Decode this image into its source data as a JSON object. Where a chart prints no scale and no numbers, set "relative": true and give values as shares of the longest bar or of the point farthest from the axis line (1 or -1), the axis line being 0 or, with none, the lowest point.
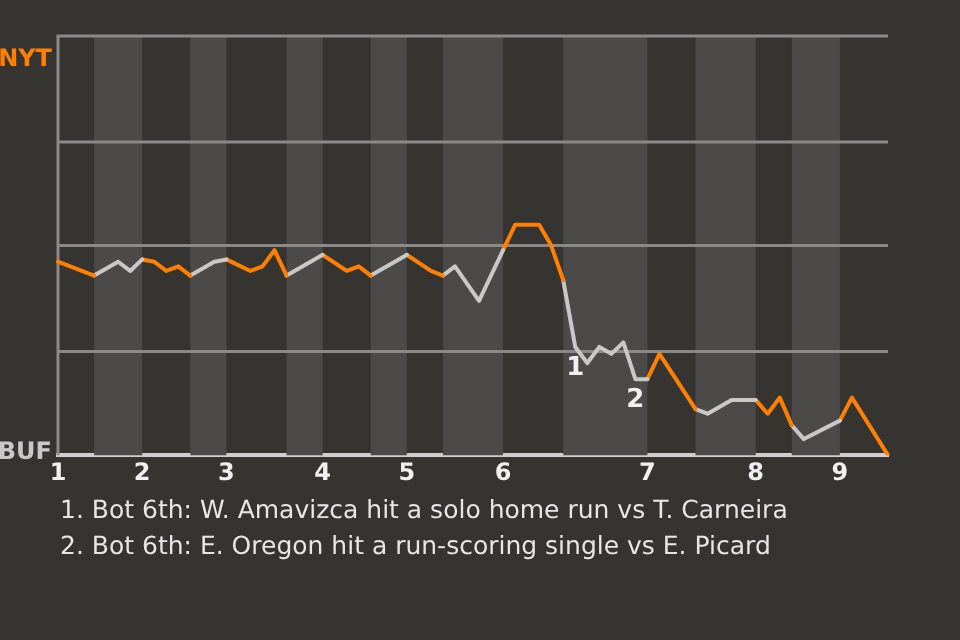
{
  "chart_data": {
    "type": "line",
    "relative": true,
    "categories": [
      "1",
      null,
      null,
      null,
      null,
      null,
      null,
      "2",
      null,
      null,
      null,
      null,
      null,
      null,
      "3",
      null,
      null,
      null,
      null,
      null,
      null,
      null,
      "4",
      null,
      null,
      null,
      null,
      null,
      null,
      "5",
      null,
      null,
      null,
      null,
      null,
      null,
      null,
      "6",
      null,
      null,
      null,
      null,
      null,
      null,
      null,
      null,
      null,
      null,
      null,
      "7",
      null,
      null,
      null,
      null,
      null,
      null,
      null,
      null,
      "8",
      null,
      null,
      null,
      null,
      null,
      null,
      "9",
      null,
      null,
      null,
      null
    ],
    "ref_lines": [
      {
        "axis": "y",
        "value": 0.45
      },
      {
        "axis": "y",
        "value": 0.91
      },
      {
        "axis": "y",
        "value": 1.36
      }
    ],
    "marker": "none",
    "line_style": "solid",
    "series": [
      {
        "color": "#ff7f00",
        "values": [
          0.84,
          null,
          null,
          0.78,
          null,
          null,
          null,
          null,
          null,
          null,
          null,
          null,
          null,
          null,
          null,
          null,
          null,
          null,
          null,
          null,
          null,
          null,
          null,
          null,
          null,
          null,
          null,
          null,
          null,
          null,
          null,
          null,
          null,
          null,
          null,
          null,
          null,
          null,
          null,
          null,
          null,
          null,
          null,
          null,
          null,
          null,
          null,
          null,
          null,
          null,
          null,
          null,
          null,
          null,
          null,
          null,
          null,
          null,
          null,
          null,
          null,
          null,
          null,
          null,
          null,
          null,
          null,
          null,
          null,
          null
        ]
      },
      {
        "color": "#c8c8c8",
        "values": [
          null,
          null,
          null,
          0.78,
          null,
          0.84,
          0.8,
          0.85,
          null,
          null,
          null,
          null,
          null,
          null,
          null,
          null,
          null,
          null,
          null,
          null,
          null,
          null,
          null,
          null,
          null,
          null,
          null,
          null,
          null,
          null,
          null,
          null,
          null,
          null,
          null,
          null,
          null,
          null,
          null,
          null,
          null,
          null,
          null,
          null,
          null,
          null,
          null,
          null,
          null,
          null,
          null,
          null,
          null,
          null,
          null,
          null,
          null,
          null,
          null,
          null,
          null,
          null,
          null,
          null,
          null,
          null,
          null,
          null,
          null,
          null
        ]
      },
      {
        "color": "#ff7f00",
        "values": [
          null,
          null,
          null,
          null,
          null,
          null,
          null,
          0.85,
          0.84,
          0.8,
          0.82,
          0.78,
          null,
          null,
          null,
          null,
          null,
          null,
          null,
          null,
          null,
          null,
          null,
          null,
          null,
          null,
          null,
          null,
          null,
          null,
          null,
          null,
          null,
          null,
          null,
          null,
          null,
          null,
          null,
          null,
          null,
          null,
          null,
          null,
          null,
          null,
          null,
          null,
          null,
          null,
          null,
          null,
          null,
          null,
          null,
          null,
          null,
          null,
          null,
          null,
          null,
          null,
          null,
          null,
          null,
          null,
          null,
          null,
          null,
          null
        ]
      },
      {
        "color": "#c8c8c8",
        "values": [
          null,
          null,
          null,
          null,
          null,
          null,
          null,
          null,
          null,
          null,
          null,
          0.78,
          null,
          0.84,
          0.85,
          null,
          null,
          null,
          null,
          null,
          null,
          null,
          null,
          null,
          null,
          null,
          null,
          null,
          null,
          null,
          null,
          null,
          null,
          null,
          null,
          null,
          null,
          null,
          null,
          null,
          null,
          null,
          null,
          null,
          null,
          null,
          null,
          null,
          null,
          null,
          null,
          null,
          null,
          null,
          null,
          null,
          null,
          null,
          null,
          null,
          null,
          null,
          null,
          null,
          null,
          null,
          null,
          null,
          null,
          null
        ]
      },
      {
        "color": "#ff7f00",
        "values": [
          null,
          null,
          null,
          null,
          null,
          null,
          null,
          null,
          null,
          null,
          null,
          null,
          null,
          null,
          0.85,
          null,
          0.8,
          0.82,
          0.89,
          0.78,
          null,
          null,
          null,
          null,
          null,
          null,
          null,
          null,
          null,
          null,
          null,
          null,
          null,
          null,
          null,
          null,
          null,
          null,
          null,
          null,
          null,
          null,
          null,
          null,
          null,
          null,
          null,
          null,
          null,
          null,
          null,
          null,
          null,
          null,
          null,
          null,
          null,
          null,
          null,
          null,
          null,
          null,
          null,
          null,
          null,
          null,
          null,
          null,
          null,
          null
        ]
      },
      {
        "color": "#c8c8c8",
        "values": [
          null,
          null,
          null,
          null,
          null,
          null,
          null,
          null,
          null,
          null,
          null,
          null,
          null,
          null,
          null,
          null,
          null,
          null,
          null,
          0.78,
          null,
          0.84,
          0.87,
          null,
          null,
          null,
          null,
          null,
          null,
          null,
          null,
          null,
          null,
          null,
          null,
          null,
          null,
          null,
          null,
          null,
          null,
          null,
          null,
          null,
          null,
          null,
          null,
          null,
          null,
          null,
          null,
          null,
          null,
          null,
          null,
          null,
          null,
          null,
          null,
          null,
          null,
          null,
          null,
          null,
          null,
          null,
          null,
          null,
          null,
          null
        ]
      },
      {
        "color": "#ff7f00",
        "values": [
          null,
          null,
          null,
          null,
          null,
          null,
          null,
          null,
          null,
          null,
          null,
          null,
          null,
          null,
          null,
          null,
          null,
          null,
          null,
          null,
          null,
          null,
          0.87,
          null,
          0.8,
          0.82,
          0.78,
          null,
          null,
          null,
          null,
          null,
          null,
          null,
          null,
          null,
          null,
          null,
          null,
          null,
          null,
          null,
          null,
          null,
          null,
          null,
          null,
          null,
          null,
          null,
          null,
          null,
          null,
          null,
          null,
          null,
          null,
          null,
          null,
          null,
          null,
          null,
          null,
          null,
          null,
          null,
          null,
          null,
          null,
          null
        ]
      },
      {
        "color": "#c8c8c8",
        "values": [
          null,
          null,
          null,
          null,
          null,
          null,
          null,
          null,
          null,
          null,
          null,
          null,
          null,
          null,
          null,
          null,
          null,
          null,
          null,
          null,
          null,
          null,
          null,
          null,
          null,
          null,
          0.78,
          null,
          0.84,
          0.87,
          null,
          null,
          null,
          null,
          null,
          null,
          null,
          null,
          null,
          null,
          null,
          null,
          null,
          null,
          null,
          null,
          null,
          null,
          null,
          null,
          null,
          null,
          null,
          null,
          null,
          null,
          null,
          null,
          null,
          null,
          null,
          null,
          null,
          null,
          null,
          null,
          null,
          null,
          null,
          null
        ]
      },
      {
        "color": "#ff7f00",
        "values": [
          null,
          null,
          null,
          null,
          null,
          null,
          null,
          null,
          null,
          null,
          null,
          null,
          null,
          null,
          null,
          null,
          null,
          null,
          null,
          null,
          null,
          null,
          null,
          null,
          null,
          null,
          null,
          null,
          null,
          0.87,
          null,
          0.8,
          0.78,
          null,
          null,
          null,
          null,
          null,
          null,
          null,
          null,
          null,
          null,
          null,
          null,
          null,
          null,
          null,
          null,
          null,
          null,
          null,
          null,
          null,
          null,
          null,
          null,
          null,
          null,
          null,
          null,
          null,
          null,
          null,
          null,
          null,
          null,
          null,
          null,
          null
        ]
      },
      {
        "color": "#c8c8c8",
        "values": [
          null,
          null,
          null,
          null,
          null,
          null,
          null,
          null,
          null,
          null,
          null,
          null,
          null,
          null,
          null,
          null,
          null,
          null,
          null,
          null,
          null,
          null,
          null,
          null,
          null,
          null,
          null,
          null,
          null,
          null,
          null,
          null,
          0.78,
          0.82,
          null,
          0.67,
          null,
          0.89,
          null,
          null,
          null,
          null,
          null,
          null,
          null,
          null,
          null,
          null,
          null,
          null,
          null,
          null,
          null,
          null,
          null,
          null,
          null,
          null,
          null,
          null,
          null,
          null,
          null,
          null,
          null,
          null,
          null,
          null,
          null,
          null
        ]
      },
      {
        "color": "#ff7f00",
        "values": [
          null,
          null,
          null,
          null,
          null,
          null,
          null,
          null,
          null,
          null,
          null,
          null,
          null,
          null,
          null,
          null,
          null,
          null,
          null,
          null,
          null,
          null,
          null,
          null,
          null,
          null,
          null,
          null,
          null,
          null,
          null,
          null,
          null,
          null,
          null,
          null,
          null,
          0.89,
          1,
          null,
          1,
          0.91,
          0.76,
          null,
          null,
          null,
          null,
          null,
          null,
          null,
          null,
          null,
          null,
          null,
          null,
          null,
          null,
          null,
          null,
          null,
          null,
          null,
          null,
          null,
          null,
          null,
          null,
          null,
          null,
          null
        ]
      },
      {
        "color": "#c8c8c8",
        "values": [
          null,
          null,
          null,
          null,
          null,
          null,
          null,
          null,
          null,
          null,
          null,
          null,
          null,
          null,
          null,
          null,
          null,
          null,
          null,
          null,
          null,
          null,
          null,
          null,
          null,
          null,
          null,
          null,
          null,
          null,
          null,
          null,
          null,
          null,
          null,
          null,
          null,
          null,
          null,
          null,
          null,
          null,
          0.76,
          0.47,
          0.4,
          0.47,
          0.44,
          0.49,
          0.33,
          0.33,
          null,
          null,
          null,
          null,
          null,
          null,
          null,
          null,
          null,
          null,
          null,
          null,
          null,
          null,
          null,
          null,
          null,
          null,
          null,
          null
        ]
      },
      {
        "color": "#ff7f00",
        "values": [
          null,
          null,
          null,
          null,
          null,
          null,
          null,
          null,
          null,
          null,
          null,
          null,
          null,
          null,
          null,
          null,
          null,
          null,
          null,
          null,
          null,
          null,
          null,
          null,
          null,
          null,
          null,
          null,
          null,
          null,
          null,
          null,
          null,
          null,
          null,
          null,
          null,
          null,
          null,
          null,
          null,
          null,
          null,
          null,
          null,
          null,
          null,
          null,
          null,
          0.33,
          0.44,
          null,
          null,
          0.2,
          null,
          null,
          null,
          null,
          null,
          null,
          null,
          null,
          null,
          null,
          null,
          null,
          null,
          null,
          null,
          null
        ]
      },
      {
        "color": "#c8c8c8",
        "values": [
          null,
          null,
          null,
          null,
          null,
          null,
          null,
          null,
          null,
          null,
          null,
          null,
          null,
          null,
          null,
          null,
          null,
          null,
          null,
          null,
          null,
          null,
          null,
          null,
          null,
          null,
          null,
          null,
          null,
          null,
          null,
          null,
          null,
          null,
          null,
          null,
          null,
          null,
          null,
          null,
          null,
          null,
          null,
          null,
          null,
          null,
          null,
          null,
          null,
          null,
          null,
          null,
          null,
          0.2,
          0.18,
          null,
          0.24,
          null,
          0.24,
          null,
          null,
          null,
          null,
          null,
          null,
          null,
          null,
          null,
          null,
          null
        ]
      },
      {
        "color": "#ff7f00",
        "values": [
          null,
          null,
          null,
          null,
          null,
          null,
          null,
          null,
          null,
          null,
          null,
          null,
          null,
          null,
          null,
          null,
          null,
          null,
          null,
          null,
          null,
          null,
          null,
          null,
          null,
          null,
          null,
          null,
          null,
          null,
          null,
          null,
          null,
          null,
          null,
          null,
          null,
          null,
          null,
          null,
          null,
          null,
          null,
          null,
          null,
          null,
          null,
          null,
          null,
          null,
          null,
          null,
          null,
          null,
          null,
          null,
          null,
          null,
          0.24,
          0.18,
          0.25,
          0.13,
          null,
          null,
          null,
          null,
          null,
          null,
          null,
          null
        ]
      },
      {
        "color": "#c8c8c8",
        "values": [
          null,
          null,
          null,
          null,
          null,
          null,
          null,
          null,
          null,
          null,
          null,
          null,
          null,
          null,
          null,
          null,
          null,
          null,
          null,
          null,
          null,
          null,
          null,
          null,
          null,
          null,
          null,
          null,
          null,
          null,
          null,
          null,
          null,
          null,
          null,
          null,
          null,
          null,
          null,
          null,
          null,
          null,
          null,
          null,
          null,
          null,
          null,
          null,
          null,
          null,
          null,
          null,
          null,
          null,
          null,
          null,
          null,
          null,
          null,
          null,
          null,
          0.13,
          0.07,
          null,
          null,
          0.15,
          null,
          null,
          null,
          null
        ]
      },
      {
        "color": "#ff7f00",
        "values": [
          null,
          null,
          null,
          null,
          null,
          null,
          null,
          null,
          null,
          null,
          null,
          null,
          null,
          null,
          null,
          null,
          null,
          null,
          null,
          null,
          null,
          null,
          null,
          null,
          null,
          null,
          null,
          null,
          null,
          null,
          null,
          null,
          null,
          null,
          null,
          null,
          null,
          null,
          null,
          null,
          null,
          null,
          null,
          null,
          null,
          null,
          null,
          null,
          null,
          null,
          null,
          null,
          null,
          null,
          null,
          null,
          null,
          null,
          null,
          null,
          null,
          null,
          null,
          null,
          null,
          0.15,
          0.25,
          null,
          null,
          0
        ]
      }
    ],
    "annotations": [
      "NYT",
      "BUF",
      {
        "text": "1",
        "y": 0.47
      },
      {
        "text": "2",
        "y": 0.33
      },
      "1. Bot 6th: W. Amavizca hit a solo home run vs T. Carneira",
      "2. Bot 6th: E. Oregon hit a run-scoring single vs E. Picard"
    ]
  }
}
